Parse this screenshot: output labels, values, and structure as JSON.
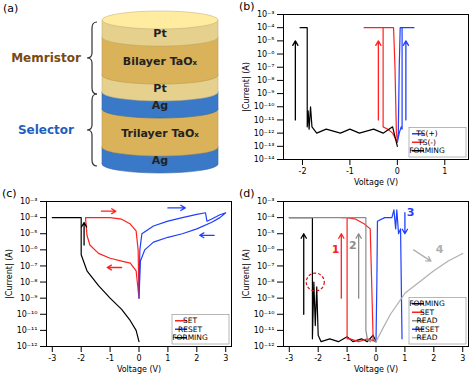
{
  "diagram": {
    "title": "(a)",
    "groups": [
      {
        "label": "Memristor",
        "color": "#7b4a12",
        "layers": [
          {
            "label": "Pt",
            "color": "#e6d08e"
          },
          {
            "label": "Bilayer TaOₓ",
            "color": "#d9b25a"
          },
          {
            "label": "Pt",
            "color": "#e6d08e"
          }
        ]
      },
      {
        "label": "Selector",
        "color": "#1f5fbf",
        "layers": [
          {
            "label": "Ag",
            "color": "#3a78c8"
          },
          {
            "label": "Trilayer TaOₓ",
            "color": "#d9b25a"
          },
          {
            "label": "Ag",
            "color": "#3a78c8"
          }
        ]
      }
    ]
  },
  "chart_data": [
    {
      "title": "(b)",
      "type": "line",
      "x_label": "Voltage (V)",
      "y_label": "|Current| (A)",
      "log": "y",
      "xlim": [
        -2.4,
        1.5
      ],
      "xticks": [
        -2,
        -1,
        0,
        1
      ],
      "ylim": [
        1e-14,
        0.001
      ],
      "yticks": [
        {
          "value": 1e-14,
          "label": "10⁻¹⁴"
        },
        {
          "value": 1e-13,
          "label": "10⁻¹³"
        },
        {
          "value": 1e-12,
          "label": "10⁻¹²"
        },
        {
          "value": 1e-11,
          "label": "10⁻¹¹"
        },
        {
          "value": 1e-10,
          "label": "10⁻¹⁰"
        },
        {
          "value": 1e-09,
          "label": "10⁻⁹"
        },
        {
          "value": 1e-08,
          "label": "10⁻⁸"
        },
        {
          "value": 1e-07,
          "label": "10⁻⁷"
        },
        {
          "value": 1e-06,
          "label": "10⁻⁶"
        },
        {
          "value": 1e-05,
          "label": "10⁻⁵"
        },
        {
          "value": 0.0001,
          "label": "10⁻⁴"
        },
        {
          "value": 0.001,
          "label": "10⁻³"
        }
      ],
      "legend": "bottom-right",
      "series": [
        {
          "name": "TS(+)",
          "color": "#1f3fff",
          "x": [
            0,
            0.04,
            0.08,
            0.1,
            0.1,
            0.2,
            0.35,
            0.2,
            0.06,
            0.04,
            0.02,
            0
          ],
          "values": [
            2e-13,
            1e-12,
            3e-12,
            2e-12,
            0.0001,
            0.0001,
            0.0001,
            0.0001,
            0.0001,
            1e-07,
            1e-12,
            3e-13
          ]
        },
        {
          "name": "TS(-)",
          "color": "#ff2020",
          "x": [
            0,
            -0.1,
            -0.2,
            -0.3,
            -0.3,
            -0.5,
            -0.7,
            -0.4,
            -0.08,
            -0.05,
            -0.02,
            0
          ],
          "values": [
            2e-13,
            1e-12,
            2e-12,
            3e-12,
            0.0001,
            0.0001,
            0.0001,
            0.0001,
            0.0001,
            1e-07,
            1e-12,
            3e-13
          ]
        },
        {
          "name": "FORMING",
          "color": "#000000",
          "x": [
            0,
            -0.1,
            -0.3,
            -0.5,
            -0.8,
            -1.0,
            -1.2,
            -1.5,
            -1.7,
            -1.8,
            -1.83,
            -1.86,
            -1.88,
            -1.9,
            -1.9,
            -2.05
          ],
          "values": [
            1e-13,
            3e-12,
            1e-12,
            2e-12,
            1e-12,
            2e-12,
            1e-12,
            2e-12,
            1e-12,
            3e-12,
            1e-10,
            2e-12,
            5e-11,
            3e-12,
            0.0001,
            0.0001
          ]
        }
      ],
      "arrows": [
        {
          "x1": -2.15,
          "y1": 1e-11,
          "x2": -2.15,
          "y2": 1e-05,
          "color": "#000000"
        },
        {
          "x1": -0.4,
          "y1": 1e-11,
          "x2": -0.4,
          "y2": 1e-05,
          "color": "#ff2020"
        },
        {
          "x1": 0.18,
          "y1": 1e-11,
          "x2": 0.18,
          "y2": 1e-05,
          "color": "#1f3fff"
        }
      ]
    },
    {
      "title": "(c)",
      "type": "line",
      "x_label": "Voltage (V)",
      "y_label": "|Current| (A)",
      "log": "y",
      "xlim": [
        -3.2,
        3.2
      ],
      "xticks": [
        -3,
        -2,
        -1,
        0,
        1,
        2,
        3
      ],
      "ylim": [
        1e-12,
        0.001
      ],
      "yticks": [
        {
          "value": 1e-12,
          "label": "10⁻¹²"
        },
        {
          "value": 1e-11,
          "label": "10⁻¹¹"
        },
        {
          "value": 1e-10,
          "label": "10⁻¹⁰"
        },
        {
          "value": 1e-09,
          "label": "10⁻⁹"
        },
        {
          "value": 1e-08,
          "label": "10⁻⁸"
        },
        {
          "value": 1e-07,
          "label": "10⁻⁷"
        },
        {
          "value": 1e-06,
          "label": "10⁻⁶"
        },
        {
          "value": 1e-05,
          "label": "10⁻⁵"
        },
        {
          "value": 0.0001,
          "label": "10⁻⁴"
        },
        {
          "value": 0.001,
          "label": "10⁻³"
        }
      ],
      "legend": "bottom-right",
      "series": [
        {
          "name": "SET",
          "color": "#ff2020",
          "x": [
            0,
            -0.1,
            -0.3,
            -0.6,
            -1.0,
            -1.4,
            -1.7,
            -1.8,
            -1.85,
            -1.8,
            -1.5,
            -1.0,
            -0.6,
            -0.3,
            -0.1,
            -0.03,
            0
          ],
          "values": [
            1e-09,
            5e-08,
            1.5e-07,
            2e-07,
            3e-07,
            6e-07,
            2e-06,
            8e-06,
            0.0001,
            0.0001,
            0.0001,
            0.0001,
            8e-05,
            4e-05,
            1.5e-05,
            1e-06,
            1e-09
          ]
        },
        {
          "name": "RESET",
          "color": "#1f3fff",
          "x": [
            0,
            0.03,
            0.1,
            0.5,
            1.0,
            1.5,
            2.0,
            2.3,
            2.35,
            2.5,
            2.8,
            3.0,
            2.8,
            2.5,
            2.0,
            1.5,
            1.0,
            0.5,
            0.2,
            0.05,
            0
          ],
          "values": [
            1e-09,
            1e-06,
            1e-05,
            3e-05,
            6e-05,
            0.0001,
            0.00016,
            0.0002,
            6e-05,
            8e-05,
            0.00015,
            0.0002,
            0.0001,
            5e-05,
            2e-05,
            1e-05,
            6e-06,
            3e-06,
            1e-06,
            2e-07,
            1e-09
          ]
        },
        {
          "name": "FORMING",
          "color": "#000000",
          "x": [
            0,
            -0.1,
            -0.3,
            -0.6,
            -1.0,
            -1.4,
            -1.8,
            -2.0,
            -2.0,
            -2.5,
            -3.0
          ],
          "values": [
            2e-12,
            1e-11,
            4e-11,
            2e-10,
            1e-09,
            6e-09,
            5e-08,
            5e-07,
            0.0001,
            0.0001,
            0.0001
          ]
        }
      ],
      "arrows": [
        {
          "x1": -1.9,
          "y1": 2e-06,
          "x2": -1.9,
          "y2": 5e-05,
          "color": "#000000"
        },
        {
          "x1": -1.3,
          "y1": 0.00025,
          "x2": -0.8,
          "y2": 0.00025,
          "color": "#ff2020"
        },
        {
          "x1": -0.6,
          "y1": 8e-08,
          "x2": -1.1,
          "y2": 8e-08,
          "color": "#ff2020"
        },
        {
          "x1": 1.0,
          "y1": 0.0004,
          "x2": 1.6,
          "y2": 0.0004,
          "color": "#1f3fff"
        },
        {
          "x1": 2.6,
          "y1": 8e-06,
          "x2": 2.1,
          "y2": 8e-06,
          "color": "#1f3fff"
        }
      ]
    },
    {
      "title": "(d)",
      "type": "line",
      "x_label": "Voltage (V)",
      "y_label": "|Current| (A)",
      "log": "y",
      "xlim": [
        -3.2,
        3.2
      ],
      "xticks": [
        -3,
        -2,
        -1,
        0,
        1,
        2,
        3
      ],
      "ylim": [
        1e-12,
        0.001
      ],
      "yticks": [
        {
          "value": 1e-12,
          "label": "10⁻¹²"
        },
        {
          "value": 1e-11,
          "label": "10⁻¹¹"
        },
        {
          "value": 1e-10,
          "label": "10⁻¹⁰"
        },
        {
          "value": 1e-09,
          "label": "10⁻⁹"
        },
        {
          "value": 1e-08,
          "label": "10⁻⁸"
        },
        {
          "value": 1e-07,
          "label": "10⁻⁷"
        },
        {
          "value": 1e-06,
          "label": "10⁻⁶"
        },
        {
          "value": 1e-05,
          "label": "10⁻⁵"
        },
        {
          "value": 0.0001,
          "label": "10⁻⁴"
        },
        {
          "value": 0.001,
          "label": "10⁻³"
        }
      ],
      "legend": "bottom-right",
      "series": [
        {
          "name": "FORMING",
          "color": "#000000",
          "x": [
            0,
            -0.1,
            -0.3,
            -0.5,
            -0.8,
            -1.0,
            -1.3,
            -1.6,
            -1.9,
            -2.0,
            -2.05,
            -2.1,
            -2.15,
            -2.2,
            -2.2,
            -2.6,
            -3.0
          ],
          "values": [
            2e-12,
            5e-12,
            2e-12,
            3e-12,
            2e-12,
            4e-12,
            2e-12,
            3e-12,
            2e-12,
            5e-12,
            5e-09,
            2e-11,
            1e-08,
            3e-12,
            0.0001,
            0.0001,
            0.0001
          ]
        },
        {
          "name": "SET",
          "color": "#ff2020",
          "x": [
            0,
            -0.3,
            -0.6,
            -0.9,
            -1.0,
            -1.0,
            -1.2,
            -1.0,
            -0.7,
            -0.4,
            -0.2,
            -0.15,
            -0.1,
            0
          ],
          "values": [
            2e-12,
            3e-12,
            2e-12,
            3e-12,
            3e-12,
            0.0001,
            0.0001,
            0.0001,
            8e-05,
            4e-05,
            2e-05,
            1e-08,
            3e-12,
            2e-12
          ]
        },
        {
          "name": "READ",
          "color": "#8c8c8c",
          "x": [
            0,
            -0.1,
            -0.2,
            -0.3,
            -0.35,
            -0.35,
            -1.0,
            -2.0,
            -3.0
          ],
          "values": [
            2e-12,
            3e-12,
            2e-12,
            3e-12,
            1e-11,
            0.0001,
            0.0001,
            0.0001,
            0.0001
          ]
        },
        {
          "name": "RESET",
          "color": "#1f3fff",
          "x": [
            0,
            0.03,
            0.05,
            0.3,
            0.55,
            0.62,
            0.68,
            0.72,
            0.78,
            0.85,
            0.9
          ],
          "values": [
            2e-12,
            1e-08,
            6e-05,
            0.0001,
            0.0001,
            0.0003,
            2e-05,
            0.0003,
            1e-05,
            2e-05,
            3e-12
          ]
        },
        {
          "name": "READ",
          "color": "#b0b0b0",
          "x": [
            0,
            0.2,
            0.5,
            1.0,
            1.5,
            2.0,
            2.5,
            3.0
          ],
          "values": [
            2e-12,
            1e-11,
            1e-10,
            2e-09,
            1e-08,
            5e-08,
            2e-07,
            6e-07
          ]
        }
      ],
      "arrows": [
        {
          "x1": -2.5,
          "y1": 1e-10,
          "x2": -2.5,
          "y2": 1e-05,
          "color": "#000000"
        },
        {
          "x1": -1.2,
          "y1": 1e-09,
          "x2": -1.2,
          "y2": 1e-05,
          "color": "#ff2020"
        },
        {
          "x1": -0.6,
          "y1": 1e-09,
          "x2": -0.6,
          "y2": 1e-05,
          "color": "#8c8c8c"
        },
        {
          "x1": 1.0,
          "y1": 0.0002,
          "x2": 1.0,
          "y2": 1e-05,
          "color": "#1f3fff"
        },
        {
          "x1": 1.3,
          "y1": 1e-06,
          "x2": 1.9,
          "y2": 2e-07,
          "color": "#b0b0b0"
        }
      ],
      "annotations": [
        {
          "text": "1",
          "x": -1.4,
          "y": 1e-06,
          "color": "#ff2020"
        },
        {
          "text": "2",
          "x": -0.8,
          "y": 2e-06,
          "color": "#8c8c8c"
        },
        {
          "text": "3",
          "x": 1.2,
          "y": 0.0002,
          "color": "#1f3fff"
        },
        {
          "text": "4",
          "x": 2.2,
          "y": 1e-06,
          "color": "#b0b0b0"
        }
      ],
      "circles": [
        {
          "x": -2.1,
          "y": 1e-08,
          "color": "#d01010"
        }
      ]
    }
  ]
}
